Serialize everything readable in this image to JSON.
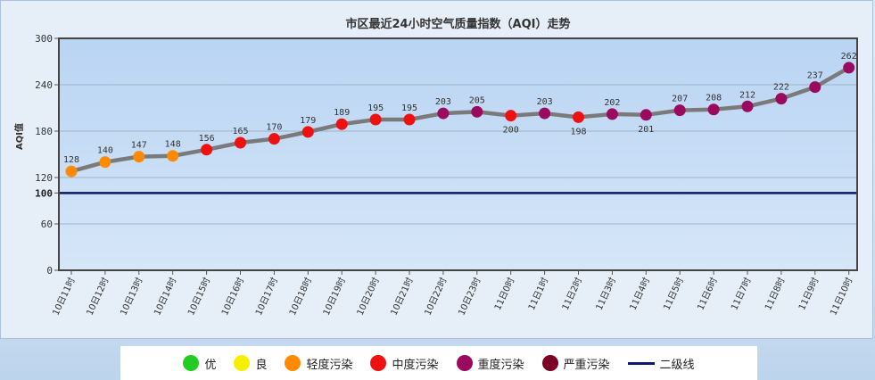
{
  "chart_data": {
    "type": "line",
    "title": "市区最近24小时空气质量指数（AQI）走势",
    "ylabel": "AQI值",
    "xlabel": "",
    "ylim": [
      0,
      300
    ],
    "yticks": [
      0,
      60,
      120,
      180,
      240,
      300
    ],
    "reference_line": {
      "value": 100,
      "label": "100",
      "color": "#0a1a6e"
    },
    "categories": [
      "10日11时",
      "10日12时",
      "10日13时",
      "10日14时",
      "10日15时",
      "10日16时",
      "10日17时",
      "10日18时",
      "10日19时",
      "10日20时",
      "10日21时",
      "10日22时",
      "10日23时",
      "11日0时",
      "11日1时",
      "11日2时",
      "11日3时",
      "11日4时",
      "11日5时",
      "11日6时",
      "11日7时",
      "11日8时",
      "11日9时",
      "11日10时"
    ],
    "values": [
      128,
      140,
      147,
      148,
      156,
      165,
      170,
      179,
      189,
      195,
      195,
      203,
      205,
      200,
      203,
      198,
      202,
      201,
      207,
      208,
      212,
      222,
      237,
      262
    ],
    "label_position": [
      "above",
      "above",
      "above",
      "above",
      "above",
      "above",
      "above",
      "above",
      "above",
      "above",
      "above",
      "above",
      "above",
      "below",
      "above",
      "below",
      "above",
      "below",
      "above",
      "above",
      "above",
      "above",
      "above",
      "above"
    ],
    "line_color": "#7a7a7a",
    "grid": true,
    "legend_position": "bottom"
  },
  "legend": {
    "items": [
      {
        "label": "优",
        "color": "#22cc22",
        "kind": "dot"
      },
      {
        "label": "良",
        "color": "#f4f000",
        "kind": "dot"
      },
      {
        "label": "轻度污染",
        "color": "#ff8a00",
        "kind": "dot"
      },
      {
        "label": "中度污染",
        "color": "#ee1111",
        "kind": "dot"
      },
      {
        "label": "重度污染",
        "color": "#9a0a5e",
        "kind": "dot"
      },
      {
        "label": "严重污染",
        "color": "#7a0026",
        "kind": "dot"
      },
      {
        "label": "二级线",
        "color": "#0a1a6e",
        "kind": "line"
      }
    ]
  }
}
